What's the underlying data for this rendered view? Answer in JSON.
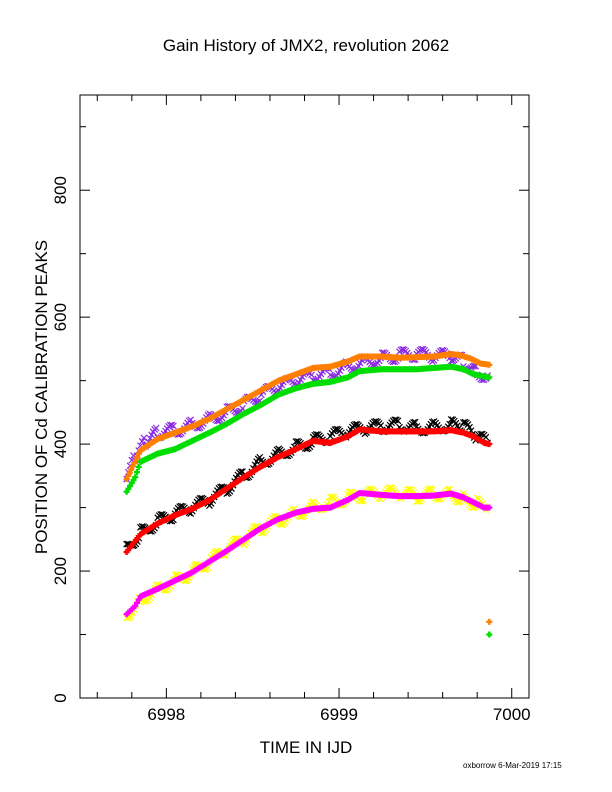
{
  "chart_data": {
    "type": "scatter",
    "title": "Gain History of JMX2, revolution 2062",
    "xlabel": "TIME IN IJD",
    "ylabel": "POSITION OF Cd CALIBRATION PEAKS",
    "xlim": [
      6997.5,
      7000.1
    ],
    "ylim": [
      0,
      950
    ],
    "xticks": [
      6998,
      6999,
      7000
    ],
    "yticks": [
      0,
      200,
      400,
      600,
      800
    ],
    "grid": false,
    "series": [
      {
        "color": "#8a2be2",
        "marker": "x",
        "points": [
          [
            6997.77,
            345
          ],
          [
            6997.82,
            380
          ],
          [
            6997.88,
            405
          ],
          [
            6997.95,
            418
          ],
          [
            6998.05,
            422
          ],
          [
            6998.15,
            430
          ],
          [
            6998.25,
            440
          ],
          [
            6998.35,
            450
          ],
          [
            6998.45,
            462
          ],
          [
            6998.55,
            478
          ],
          [
            6998.65,
            490
          ],
          [
            6998.75,
            500
          ],
          [
            6998.85,
            508
          ],
          [
            6998.95,
            512
          ],
          [
            6999.05,
            522
          ],
          [
            6999.15,
            530
          ],
          [
            6999.25,
            535
          ],
          [
            6999.35,
            540
          ],
          [
            6999.45,
            542
          ],
          [
            6999.55,
            538
          ],
          [
            6999.65,
            540
          ],
          [
            6999.72,
            530
          ],
          [
            6999.8,
            512
          ],
          [
            6999.86,
            508
          ]
        ]
      },
      {
        "color": "#ff7f00",
        "marker": "+",
        "points": [
          [
            6997.77,
            345
          ],
          [
            6997.85,
            390
          ],
          [
            6997.95,
            408
          ],
          [
            6998.05,
            418
          ],
          [
            6998.15,
            428
          ],
          [
            6998.25,
            440
          ],
          [
            6998.35,
            455
          ],
          [
            6998.45,
            470
          ],
          [
            6998.55,
            485
          ],
          [
            6998.65,
            500
          ],
          [
            6998.75,
            510
          ],
          [
            6998.85,
            520
          ],
          [
            6998.95,
            522
          ],
          [
            6999.05,
            530
          ],
          [
            6999.12,
            538
          ],
          [
            6999.25,
            538
          ],
          [
            6999.35,
            536
          ],
          [
            6999.45,
            537
          ],
          [
            6999.55,
            538
          ],
          [
            6999.65,
            542
          ],
          [
            6999.7,
            540
          ],
          [
            6999.76,
            535
          ],
          [
            6999.82,
            527
          ],
          [
            6999.87,
            525
          ],
          [
            6999.87,
            120
          ]
        ]
      },
      {
        "color": "#00dd00",
        "marker": "+",
        "points": [
          [
            6997.77,
            325
          ],
          [
            6997.82,
            348
          ],
          [
            6997.85,
            372
          ],
          [
            6997.95,
            385
          ],
          [
            6998.05,
            392
          ],
          [
            6998.15,
            405
          ],
          [
            6998.25,
            418
          ],
          [
            6998.35,
            432
          ],
          [
            6998.45,
            448
          ],
          [
            6998.55,
            462
          ],
          [
            6998.65,
            478
          ],
          [
            6998.75,
            488
          ],
          [
            6998.85,
            495
          ],
          [
            6998.95,
            498
          ],
          [
            6999.05,
            505
          ],
          [
            6999.12,
            515
          ],
          [
            6999.25,
            518
          ],
          [
            6999.35,
            518
          ],
          [
            6999.45,
            518
          ],
          [
            6999.55,
            520
          ],
          [
            6999.65,
            522
          ],
          [
            6999.72,
            518
          ],
          [
            6999.78,
            510
          ],
          [
            6999.87,
            505
          ],
          [
            6999.87,
            100
          ]
        ]
      },
      {
        "color": "#000000",
        "marker": "x",
        "points": [
          [
            6997.77,
            235
          ],
          [
            6997.85,
            260
          ],
          [
            6997.95,
            278
          ],
          [
            6998.05,
            290
          ],
          [
            6998.15,
            300
          ],
          [
            6998.25,
            312
          ],
          [
            6998.35,
            330
          ],
          [
            6998.45,
            352
          ],
          [
            6998.55,
            372
          ],
          [
            6998.65,
            385
          ],
          [
            6998.75,
            395
          ],
          [
            6998.85,
            405
          ],
          [
            6998.95,
            412
          ],
          [
            6999.05,
            420
          ],
          [
            6999.15,
            425
          ],
          [
            6999.25,
            428
          ],
          [
            6999.35,
            430
          ],
          [
            6999.45,
            425
          ],
          [
            6999.55,
            428
          ],
          [
            6999.65,
            430
          ],
          [
            6999.72,
            428
          ],
          [
            6999.8,
            412
          ],
          [
            6999.86,
            402
          ]
        ]
      },
      {
        "color": "#ff0000",
        "marker": "+",
        "points": [
          [
            6997.77,
            230
          ],
          [
            6997.85,
            258
          ],
          [
            6997.95,
            275
          ],
          [
            6998.05,
            288
          ],
          [
            6998.15,
            298
          ],
          [
            6998.25,
            312
          ],
          [
            6998.35,
            330
          ],
          [
            6998.45,
            348
          ],
          [
            6998.55,
            365
          ],
          [
            6998.65,
            380
          ],
          [
            6998.75,
            392
          ],
          [
            6998.85,
            405
          ],
          [
            6998.95,
            402
          ],
          [
            6999.05,
            412
          ],
          [
            6999.12,
            423
          ],
          [
            6999.25,
            420
          ],
          [
            6999.35,
            420
          ],
          [
            6999.45,
            420
          ],
          [
            6999.55,
            420
          ],
          [
            6999.65,
            422
          ],
          [
            6999.72,
            418
          ],
          [
            6999.78,
            412
          ],
          [
            6999.84,
            402
          ],
          [
            6999.87,
            400
          ]
        ]
      },
      {
        "color": "#ffff00",
        "marker": "x",
        "points": [
          [
            6997.77,
            130
          ],
          [
            6997.85,
            155
          ],
          [
            6997.95,
            172
          ],
          [
            6998.05,
            185
          ],
          [
            6998.15,
            198
          ],
          [
            6998.25,
            215
          ],
          [
            6998.35,
            235
          ],
          [
            6998.45,
            250
          ],
          [
            6998.55,
            268
          ],
          [
            6998.65,
            280
          ],
          [
            6998.75,
            290
          ],
          [
            6998.85,
            302
          ],
          [
            6998.95,
            308
          ],
          [
            6999.05,
            315
          ],
          [
            6999.15,
            320
          ],
          [
            6999.25,
            322
          ],
          [
            6999.35,
            323
          ],
          [
            6999.45,
            318
          ],
          [
            6999.55,
            322
          ],
          [
            6999.65,
            320
          ],
          [
            6999.72,
            315
          ],
          [
            6999.8,
            306
          ],
          [
            6999.86,
            300
          ]
        ]
      },
      {
        "color": "#ff00ff",
        "marker": "+",
        "points": [
          [
            6997.77,
            132
          ],
          [
            6997.82,
            145
          ],
          [
            6997.85,
            160
          ],
          [
            6997.95,
            172
          ],
          [
            6998.05,
            185
          ],
          [
            6998.15,
            198
          ],
          [
            6998.25,
            215
          ],
          [
            6998.35,
            232
          ],
          [
            6998.45,
            250
          ],
          [
            6998.55,
            268
          ],
          [
            6998.65,
            282
          ],
          [
            6998.75,
            292
          ],
          [
            6998.85,
            298
          ],
          [
            6998.95,
            300
          ],
          [
            6999.05,
            312
          ],
          [
            6999.12,
            323
          ],
          [
            6999.25,
            320
          ],
          [
            6999.35,
            318
          ],
          [
            6999.45,
            318
          ],
          [
            6999.55,
            319
          ],
          [
            6999.65,
            322
          ],
          [
            6999.72,
            316
          ],
          [
            6999.78,
            308
          ],
          [
            6999.84,
            300
          ],
          [
            6999.87,
            300
          ]
        ]
      }
    ]
  },
  "footer": "oxborrow  6-Mar-2019 17:15"
}
